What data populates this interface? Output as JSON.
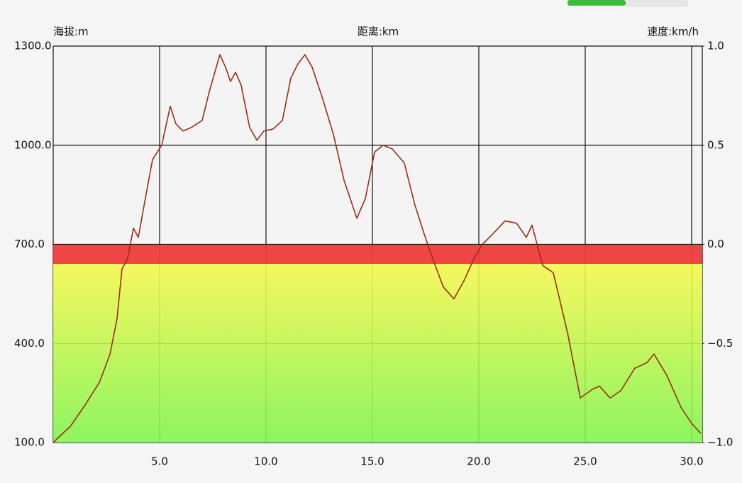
{
  "chart_data": {
    "type": "line",
    "y_axis_label": "海拔:m",
    "x_axis_label": "距离:km",
    "y2_axis_label": "速度:km/h",
    "xlim": [
      0,
      30.5
    ],
    "xticks": [
      {
        "value": 5,
        "label": "5.0"
      },
      {
        "value": 10,
        "label": "10.0"
      },
      {
        "value": 15,
        "label": "15.0"
      },
      {
        "value": 20,
        "label": "20.0"
      },
      {
        "value": 25,
        "label": "25.0"
      },
      {
        "value": 30,
        "label": "30.0"
      }
    ],
    "ylim": [
      100,
      1300
    ],
    "yticks": [
      {
        "value": 100,
        "label": "100.0"
      },
      {
        "value": 400,
        "label": "400.0"
      },
      {
        "value": 700,
        "label": "700.0"
      },
      {
        "value": 1000,
        "label": "1000.0"
      },
      {
        "value": 1300,
        "label": "1300.0"
      }
    ],
    "y2lim": [
      -1,
      1
    ],
    "y2ticks": [
      {
        "value": -1,
        "label": "−1.0"
      },
      {
        "value": -0.5,
        "label": "−0.5"
      },
      {
        "value": 0,
        "label": "0.0"
      },
      {
        "value": 0.5,
        "label": "0.5"
      },
      {
        "value": 1,
        "label": "1.0"
      }
    ],
    "grid": true,
    "series": [
      {
        "color": "#9b2d1a",
        "x": [
          0,
          0.83,
          1.5,
          2.17,
          2.67,
          3.0,
          3.23,
          3.5,
          3.77,
          4.0,
          4.33,
          4.67,
          5.1,
          5.5,
          5.77,
          6.1,
          6.5,
          7.0,
          7.33,
          7.83,
          8.1,
          8.33,
          8.57,
          8.83,
          9.23,
          9.57,
          9.9,
          10.33,
          10.77,
          11.17,
          11.5,
          11.83,
          12.17,
          12.67,
          13.17,
          13.67,
          14.27,
          14.67,
          15.1,
          15.5,
          15.93,
          16.5,
          17.0,
          17.43,
          17.83,
          18.33,
          18.83,
          19.33,
          19.77,
          20.17,
          20.67,
          21.23,
          21.77,
          22.23,
          22.5,
          23.0,
          23.5,
          24.17,
          24.77,
          25.33,
          25.67,
          26.17,
          26.67,
          27.33,
          27.9,
          28.23,
          28.83,
          29.5,
          30.0,
          30.43
        ],
        "values": [
          100,
          151,
          214,
          282,
          368,
          475,
          625,
          657,
          749,
          721,
          839,
          957,
          1000,
          1118,
          1064,
          1043,
          1054,
          1075,
          1161,
          1274,
          1236,
          1193,
          1221,
          1182,
          1054,
          1015,
          1043,
          1049,
          1075,
          1204,
          1246,
          1274,
          1236,
          1139,
          1032,
          893,
          779,
          839,
          979,
          1000,
          989,
          946,
          818,
          732,
          657,
          571,
          535,
          593,
          657,
          700,
          732,
          771,
          764,
          721,
          758,
          636,
          614,
          432,
          235,
          261,
          271,
          235,
          257,
          325,
          342,
          368,
          304,
          207,
          158,
          128
        ]
      }
    ]
  }
}
